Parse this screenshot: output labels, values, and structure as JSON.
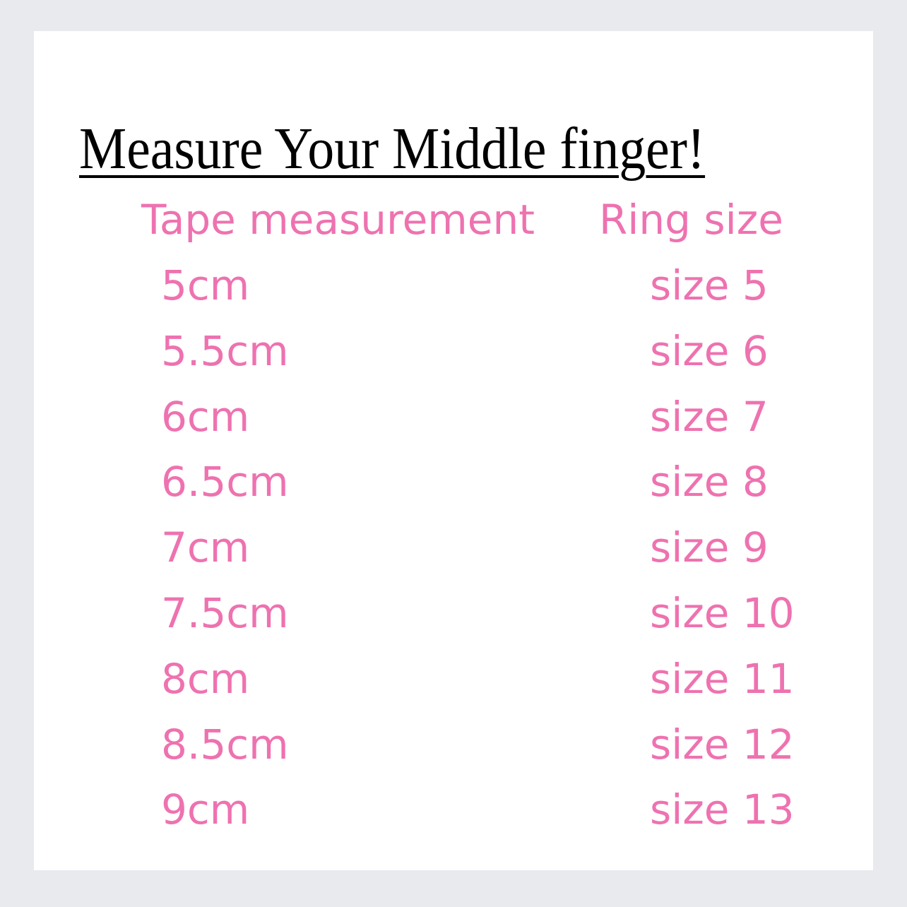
{
  "title": "Measure Your Middle finger! ",
  "colors": {
    "text_pink": "#ee72b0",
    "title": "#000000",
    "background": "#e8eaee"
  },
  "table": {
    "headers": [
      "Tape measurement",
      "Ring size"
    ],
    "rows": [
      [
        "5cm",
        "size 5"
      ],
      [
        "5.5cm",
        "size 6"
      ],
      [
        "6cm",
        "size 7"
      ],
      [
        "6.5cm",
        "size 8"
      ],
      [
        "7cm",
        "size 9"
      ],
      [
        "7.5cm",
        "size 10"
      ],
      [
        "8cm",
        "size 11"
      ],
      [
        "8.5cm",
        "size 12"
      ],
      [
        "9cm",
        "size 13"
      ]
    ]
  }
}
